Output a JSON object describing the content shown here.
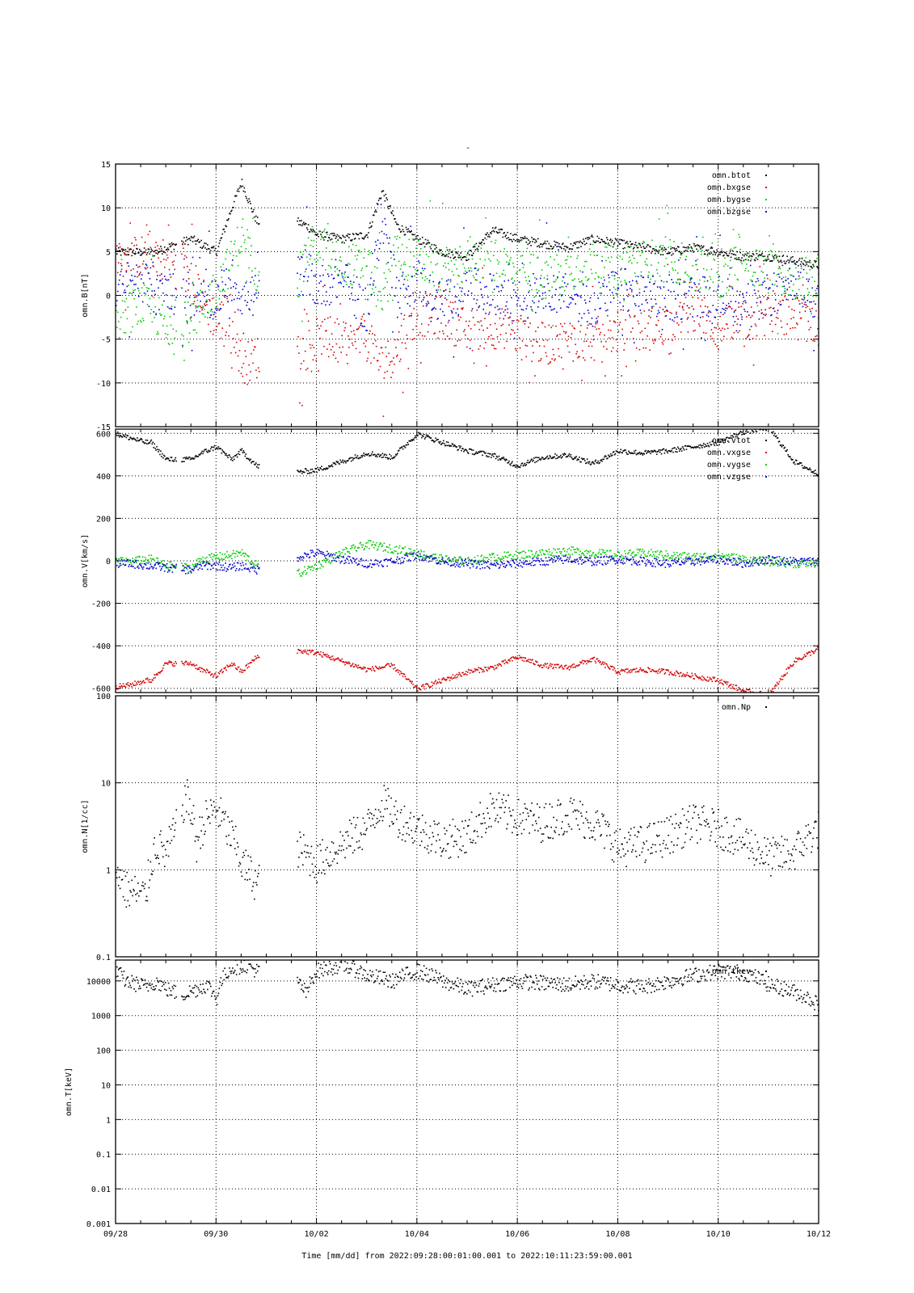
{
  "figure": {
    "title": "-",
    "x_axis_label": "Time [mm/dd]  from 2022:09:28:00:01:00.001  to  2022:10:11:23:59:00.001",
    "x_tick_labels": [
      "09/28",
      "09/30",
      "10/02",
      "10/04",
      "10/06",
      "10/08",
      "10/10",
      "10/12"
    ]
  },
  "chart_data": [
    {
      "type": "scatter",
      "ylabel": "omn.B[nT]",
      "xlim_days": [
        0,
        14
      ],
      "ylim": [
        -15,
        15
      ],
      "yticks": [
        -15,
        -10,
        -5,
        0,
        5,
        10,
        15
      ],
      "grid": true,
      "legend_placement": "top-right",
      "series": [
        {
          "name": "omn.btot",
          "color": "#000000",
          "x_days": [
            0,
            0.5,
            0.8,
            1.0,
            1.5,
            2.0,
            2.3,
            2.5,
            2.8,
            3.6,
            3.8,
            4.0,
            4.5,
            5.0,
            5.3,
            5.6,
            6.0,
            6.5,
            7.0,
            7.5,
            8.0,
            8.5,
            9.0,
            9.5,
            10.0,
            10.5,
            11.0,
            11.5,
            12.0,
            12.5,
            13.0,
            13.5,
            14.0
          ],
          "y": [
            5,
            5,
            5,
            5.5,
            6.5,
            5,
            10,
            13,
            8.5,
            8.5,
            8,
            7,
            6.5,
            7,
            12,
            8,
            6.5,
            5,
            4.5,
            7.5,
            6.5,
            6,
            5.5,
            6.5,
            6,
            5.5,
            5,
            5.5,
            5,
            4.5,
            4.5,
            4,
            3.5
          ]
        },
        {
          "name": "omn.bxgse",
          "color": "#d40000",
          "x_days": [
            0,
            0.5,
            0.8,
            1.0,
            1.5,
            2.0,
            2.3,
            2.5,
            2.8,
            3.6,
            3.8,
            4.0,
            4.5,
            5.0,
            5.3,
            5.6,
            6.0,
            6.5,
            7.0,
            7.5,
            8.0,
            8.5,
            9.0,
            9.5,
            10.0,
            10.5,
            11.0,
            11.5,
            12.0,
            12.5,
            13.0,
            13.5,
            14.0
          ],
          "y": [
            4,
            4.5,
            5,
            4,
            2,
            -3,
            -2,
            -8,
            -7,
            -6,
            -6,
            -5,
            -5.5,
            -5,
            -8,
            -6,
            -2,
            -2.5,
            -4,
            -3.5,
            -4.5,
            -5.5,
            -5,
            -5,
            -4,
            -4,
            -3,
            -1.5,
            -4,
            -3,
            -2,
            -2.5,
            -3
          ]
        },
        {
          "name": "omn.bygse",
          "color": "#00cc00",
          "x_days": [
            0,
            0.5,
            0.8,
            1.0,
            1.5,
            2.0,
            2.3,
            2.5,
            2.8,
            3.6,
            3.8,
            4.0,
            4.5,
            5.0,
            5.3,
            5.6,
            6.0,
            6.5,
            7.0,
            7.5,
            8.0,
            8.5,
            9.0,
            9.5,
            10.0,
            10.5,
            11.0,
            11.5,
            12.0,
            12.5,
            13.0,
            13.5,
            14.0
          ],
          "y": [
            -3,
            -1,
            -2,
            -4,
            -3,
            1,
            4,
            7,
            3,
            1,
            5,
            6,
            4,
            3,
            0,
            5,
            4,
            3,
            4,
            4,
            3,
            2,
            3,
            4,
            3,
            4,
            4,
            3.5,
            2,
            4,
            3,
            2,
            2
          ]
        },
        {
          "name": "omn.bzgse",
          "color": "#0000cc",
          "x_days": [
            0,
            0.5,
            0.8,
            1.0,
            1.5,
            2.0,
            2.3,
            2.5,
            2.8,
            3.6,
            3.8,
            4.0,
            4.5,
            5.0,
            5.3,
            5.6,
            6.0,
            6.5,
            7.0,
            7.5,
            8.0,
            8.5,
            9.0,
            9.5,
            10.0,
            10.5,
            11.0,
            11.5,
            12.0,
            12.5,
            13.0,
            13.5,
            14.0
          ],
          "y": [
            1,
            2,
            0,
            1,
            -1,
            0,
            2,
            0,
            0,
            2,
            3,
            1,
            2,
            -2,
            9,
            0,
            2,
            -1,
            1,
            0,
            -1,
            1,
            0,
            -1,
            1,
            0,
            -0.5,
            0,
            0,
            -1,
            0,
            2,
            -1
          ]
        }
      ]
    },
    {
      "type": "scatter",
      "ylabel": "omn.V[km/s]",
      "xlim_days": [
        0,
        14
      ],
      "ylim": [
        -620,
        620
      ],
      "yticks": [
        -600,
        -400,
        -200,
        0,
        200,
        400,
        600
      ],
      "grid": true,
      "legend_placement": "top-right",
      "series": [
        {
          "name": "omn.vtot",
          "color": "#000000",
          "x_days": [
            0,
            0.3,
            0.6,
            0.7,
            1.0,
            1.5,
            1.7,
            2.0,
            2.3,
            2.5,
            2.8,
            3.6,
            4.0,
            4.5,
            5.0,
            5.5,
            6.0,
            6.5,
            7.0,
            7.5,
            8.0,
            8.5,
            9.0,
            9.5,
            10.0,
            10.5,
            11.0,
            11.5,
            12.0,
            12.5,
            13.0,
            13.5,
            14.0
          ],
          "y": [
            600,
            580,
            560,
            560,
            480,
            480,
            510,
            540,
            480,
            520,
            450,
            420,
            430,
            470,
            510,
            490,
            600,
            560,
            520,
            500,
            450,
            490,
            500,
            460,
            520,
            510,
            520,
            540,
            560,
            610,
            630,
            470,
            410
          ]
        },
        {
          "name": "omn.vxgse",
          "color": "#d40000",
          "x_days": [
            0,
            0.3,
            0.6,
            0.7,
            1.0,
            1.5,
            1.7,
            2.0,
            2.3,
            2.5,
            2.8,
            3.6,
            4.0,
            4.5,
            5.0,
            5.5,
            6.0,
            6.5,
            7.0,
            7.5,
            8.0,
            8.5,
            9.0,
            9.5,
            10.0,
            10.5,
            11.0,
            11.5,
            12.0,
            12.5,
            13.0,
            13.5,
            14.0
          ],
          "y": [
            -590,
            -580,
            -560,
            -560,
            -480,
            -480,
            -510,
            -540,
            -480,
            -520,
            -450,
            -420,
            -430,
            -470,
            -510,
            -490,
            -600,
            -560,
            -520,
            -500,
            -450,
            -490,
            -500,
            -460,
            -520,
            -510,
            -520,
            -540,
            -560,
            -610,
            -630,
            -470,
            -410
          ]
        },
        {
          "name": "omn.vygse",
          "color": "#00cc00",
          "x_days": [
            0,
            0.3,
            0.6,
            0.7,
            1.0,
            1.5,
            1.7,
            2.0,
            2.3,
            2.5,
            2.8,
            3.6,
            4.0,
            4.5,
            5.0,
            5.5,
            6.0,
            6.5,
            7.0,
            7.5,
            8.0,
            8.5,
            9.0,
            9.5,
            10.0,
            10.5,
            11.0,
            11.5,
            12.0,
            12.5,
            13.0,
            13.5,
            14.0
          ],
          "y": [
            0,
            0,
            10,
            10,
            -20,
            -30,
            10,
            20,
            30,
            40,
            -20,
            -60,
            -20,
            40,
            80,
            60,
            40,
            10,
            0,
            20,
            30,
            40,
            50,
            40,
            30,
            40,
            30,
            20,
            30,
            10,
            0,
            -10,
            -10
          ]
        },
        {
          "name": "omn.vzgse",
          "color": "#0000cc",
          "x_days": [
            0,
            0.3,
            0.6,
            0.7,
            1.0,
            1.5,
            1.7,
            2.0,
            2.3,
            2.5,
            2.8,
            3.6,
            4.0,
            4.5,
            5.0,
            5.5,
            6.0,
            6.5,
            7.0,
            7.5,
            8.0,
            8.5,
            9.0,
            9.5,
            10.0,
            10.5,
            11.0,
            11.5,
            12.0,
            12.5,
            13.0,
            13.5,
            14.0
          ],
          "y": [
            -10,
            -10,
            -20,
            -20,
            -30,
            -40,
            -20,
            -20,
            -30,
            -20,
            -40,
            20,
            40,
            10,
            -10,
            0,
            30,
            0,
            -10,
            -20,
            -10,
            0,
            10,
            0,
            10,
            0,
            -10,
            0,
            10,
            -10,
            10,
            0,
            0
          ]
        }
      ]
    },
    {
      "type": "scatter",
      "ylabel": "omn.N[1/cc]",
      "xlim_days": [
        0,
        14
      ],
      "ylim": [
        0.1,
        100
      ],
      "y_scale": "log",
      "yticks": [
        0.1,
        1,
        10,
        100
      ],
      "ytick_labels": [
        "0.1",
        "1",
        "10",
        "100"
      ],
      "grid": true,
      "legend_placement": "top-right",
      "series": [
        {
          "name": "omn.Np",
          "color": "#000000",
          "x_days": [
            0,
            0.2,
            0.6,
            0.8,
            1.0,
            1.2,
            1.4,
            1.6,
            1.8,
            2.0,
            2.2,
            2.5,
            2.8,
            3.6,
            4.0,
            4.5,
            5.0,
            5.3,
            5.6,
            6.0,
            6.5,
            7.0,
            7.5,
            8.0,
            8.5,
            9.0,
            9.5,
            10.0,
            10.5,
            11.0,
            11.5,
            12.0,
            12.5,
            13.0,
            13.5,
            14.0
          ],
          "y": [
            1,
            0.6,
            0.5,
            2,
            1.5,
            3,
            7,
            2,
            4,
            5,
            3,
            1.2,
            0.7,
            1.8,
            1.2,
            2,
            3,
            6,
            4,
            3,
            2.2,
            2.5,
            5,
            4,
            3.5,
            4.5,
            3.5,
            1.8,
            2,
            2.5,
            3.5,
            3,
            2.2,
            1.4,
            1.6,
            3
          ]
        }
      ]
    },
    {
      "type": "scatter",
      "ylabel": "omn.T[keV]",
      "xlim_days": [
        0,
        14
      ],
      "ylim": [
        0.001,
        40000
      ],
      "y_scale": "log",
      "yticks": [
        0.001,
        0.01,
        0.1,
        1,
        10,
        100,
        1000,
        10000
      ],
      "ytick_labels": [
        "0.001",
        "0.01",
        "0.1",
        "1",
        "10",
        "100",
        "1000",
        "10000"
      ],
      "grid": true,
      "legend_placement": "top-right",
      "series": [
        {
          "name": "omn.tkev",
          "color": "#000000",
          "x_days": [
            0,
            0.2,
            0.6,
            0.8,
            1.0,
            1.3,
            1.6,
            1.8,
            2.0,
            2.3,
            2.6,
            2.8,
            3.6,
            3.8,
            4.0,
            4.5,
            5.0,
            5.5,
            6.0,
            6.5,
            7.0,
            7.5,
            8.0,
            8.5,
            9.0,
            9.5,
            10.0,
            10.5,
            11.0,
            11.5,
            12.0,
            12.5,
            13.0,
            13.5,
            14.0
          ],
          "y": [
            20000,
            10000,
            7000,
            10000,
            6000,
            4000,
            6000,
            8000,
            3000,
            25000,
            30000,
            20000,
            10000,
            4000,
            20000,
            30000,
            15000,
            10000,
            20000,
            10000,
            6000,
            8000,
            10000,
            9000,
            8000,
            10000,
            8000,
            7000,
            10000,
            15000,
            20000,
            18000,
            8000,
            5000,
            2000
          ]
        }
      ]
    }
  ]
}
